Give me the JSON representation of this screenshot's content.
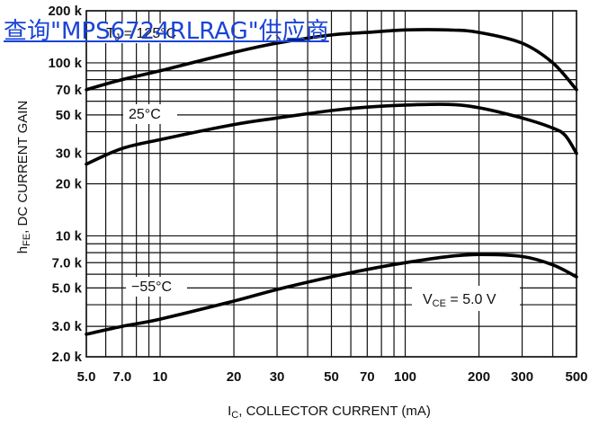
{
  "overlay_link": {
    "text": "查询\"MPS6724RLRAG\"供应商"
  },
  "chart_data": {
    "type": "line",
    "title": "",
    "xlabel": {
      "main": "I",
      "sub": "C",
      "rest": ", COLLECTOR CURRENT (mA)"
    },
    "ylabel": {
      "main": "h",
      "sub": "FE",
      "rest": ", DC CURRENT GAIN"
    },
    "x_scale": "log",
    "y_scale": "log",
    "xlim": [
      5,
      500
    ],
    "ylim": [
      2000,
      200000
    ],
    "grid": true,
    "x_ticks": [
      {
        "v": 5,
        "label": "5.0"
      },
      {
        "v": 7,
        "label": "7.0"
      },
      {
        "v": 10,
        "label": "10"
      },
      {
        "v": 20,
        "label": "20"
      },
      {
        "v": 30,
        "label": "30"
      },
      {
        "v": 50,
        "label": "50"
      },
      {
        "v": 70,
        "label": "70"
      },
      {
        "v": 100,
        "label": "100"
      },
      {
        "v": 200,
        "label": "200"
      },
      {
        "v": 300,
        "label": "300"
      },
      {
        "v": 500,
        "label": "500"
      }
    ],
    "y_ticks": [
      {
        "v": 2000,
        "label": "2.0 k"
      },
      {
        "v": 3000,
        "label": "3.0 k"
      },
      {
        "v": 5000,
        "label": "5.0 k"
      },
      {
        "v": 7000,
        "label": "7.0 k"
      },
      {
        "v": 10000,
        "label": "10 k"
      },
      {
        "v": 20000,
        "label": "20 k"
      },
      {
        "v": 30000,
        "label": "30 k"
      },
      {
        "v": 50000,
        "label": "50 k"
      },
      {
        "v": 70000,
        "label": "70 k"
      },
      {
        "v": 100000,
        "label": "100 k"
      },
      {
        "v": 200000,
        "label": "200 k"
      }
    ],
    "grid_x": [
      5,
      6,
      7,
      8,
      9,
      10,
      20,
      30,
      40,
      50,
      60,
      70,
      80,
      90,
      100,
      200,
      300,
      400,
      500
    ],
    "grid_y": [
      2000,
      3000,
      4000,
      5000,
      6000,
      7000,
      8000,
      9000,
      10000,
      20000,
      30000,
      40000,
      50000,
      60000,
      70000,
      80000,
      90000,
      100000,
      200000
    ],
    "series": [
      {
        "name": "TJ = 125°C",
        "label": "125°C",
        "label_prefix": "T",
        "label_sub": "J",
        "label_eq": " = ",
        "points": [
          [
            5,
            70000
          ],
          [
            7,
            80000
          ],
          [
            10,
            90000
          ],
          [
            20,
            115000
          ],
          [
            30,
            130000
          ],
          [
            50,
            145000
          ],
          [
            70,
            150000
          ],
          [
            100,
            155000
          ],
          [
            150,
            155000
          ],
          [
            200,
            150000
          ],
          [
            300,
            130000
          ],
          [
            400,
            100000
          ],
          [
            500,
            70000
          ]
        ]
      },
      {
        "name": "25°C",
        "label": "25°C",
        "points": [
          [
            5,
            26000
          ],
          [
            7,
            32000
          ],
          [
            10,
            36000
          ],
          [
            20,
            44000
          ],
          [
            30,
            48000
          ],
          [
            50,
            53000
          ],
          [
            70,
            55500
          ],
          [
            100,
            57000
          ],
          [
            150,
            57500
          ],
          [
            200,
            55000
          ],
          [
            300,
            48000
          ],
          [
            400,
            42000
          ],
          [
            450,
            38000
          ],
          [
            500,
            30000
          ]
        ]
      },
      {
        "name": "-55°C",
        "label": "−55°C",
        "points": [
          [
            5,
            2700
          ],
          [
            7,
            3000
          ],
          [
            10,
            3300
          ],
          [
            20,
            4200
          ],
          [
            30,
            4900
          ],
          [
            50,
            5800
          ],
          [
            70,
            6400
          ],
          [
            100,
            7000
          ],
          [
            150,
            7600
          ],
          [
            200,
            7800
          ],
          [
            300,
            7600
          ],
          [
            400,
            6800
          ],
          [
            500,
            5800
          ]
        ]
      }
    ],
    "annotation": {
      "main": "V",
      "sub": "CE",
      "rest": " = 5.0 V"
    }
  }
}
